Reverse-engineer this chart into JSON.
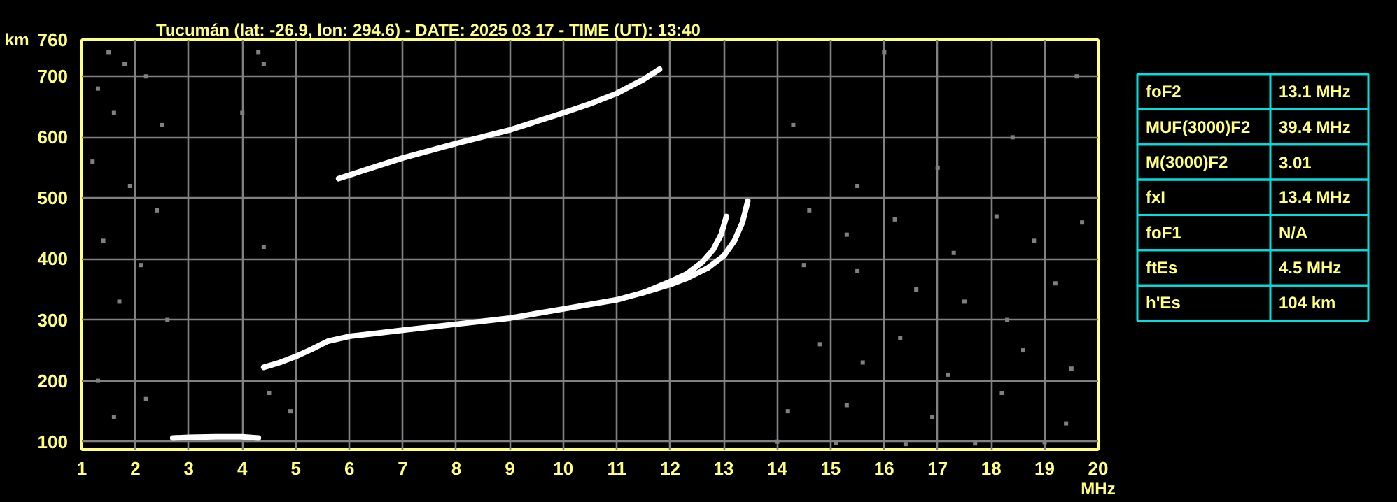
{
  "chart_data": [
    {
      "type": "line",
      "title": "Tucumán (lat: -26.9, lon: 294.6) - DATE: 2025 03 17 - TIME (UT): 13:40",
      "xlabel": "MHz",
      "ylabel": "km",
      "xlim": [
        1,
        20
      ],
      "ylim": [
        87,
        760
      ],
      "xticks": [
        1,
        2,
        3,
        4,
        5,
        6,
        7,
        8,
        9,
        10,
        11,
        12,
        13,
        14,
        15,
        16,
        17,
        18,
        19,
        20
      ],
      "yticks": [
        100,
        200,
        300,
        400,
        500,
        600,
        700,
        760
      ],
      "grid": true,
      "series": [
        {
          "color": "#ffffff",
          "x": [
            4.4,
            4.7,
            5.0,
            5.3,
            5.6,
            6.0,
            6.5,
            7.0,
            8.0,
            9.0,
            10.0,
            11.0,
            11.5,
            12.0,
            12.3,
            12.6,
            12.8,
            12.95,
            13.05
          ],
          "values": [
            222,
            230,
            240,
            252,
            265,
            273,
            278,
            283,
            293,
            303,
            318,
            333,
            345,
            363,
            375,
            395,
            415,
            440,
            470
          ]
        },
        {
          "color": "#ffffff",
          "x": [
            11.5,
            12.0,
            12.3,
            12.7,
            13.0,
            13.2,
            13.35,
            13.45
          ],
          "values": [
            345,
            358,
            368,
            385,
            405,
            430,
            460,
            495
          ]
        },
        {
          "color": "#ffffff",
          "x": [
            5.8,
            6.5,
            7.0,
            8.0,
            9.0,
            10.0,
            10.5,
            11.0,
            11.5,
            11.8
          ],
          "values": [
            532,
            552,
            566,
            590,
            612,
            640,
            655,
            672,
            695,
            712
          ]
        },
        {
          "color": "#ffffff",
          "x": [
            2.7,
            3.0,
            3.5,
            4.0,
            4.3
          ],
          "values": [
            106,
            107,
            108,
            108,
            106
          ]
        },
        {
          "type": "scatter",
          "marker": "square",
          "color": "#808080",
          "x": [
            14.6,
            15.3,
            16.2,
            17.3,
            18.1,
            18.8,
            19.7,
            14.5,
            15.5,
            16.6,
            17.5,
            18.3,
            19.2,
            14.8,
            15.6,
            16.3,
            17.2,
            18.6,
            19.5,
            14.2,
            15.3,
            16.9,
            18.2,
            19.4,
            14.0,
            15.1,
            16.4,
            17.7,
            19.0,
            15.5,
            17.0,
            18.4,
            19.6,
            14.3,
            16.0,
            1.5,
            1.8,
            2.2,
            1.3,
            1.6,
            2.5,
            1.2,
            1.9,
            2.4,
            1.4,
            2.1,
            1.7,
            2.6,
            1.3,
            2.2,
            1.6,
            4.3,
            4.4,
            4.0,
            4.4,
            4.5,
            4.9
          ],
          "values": [
            480,
            440,
            465,
            410,
            470,
            430,
            460,
            390,
            380,
            350,
            330,
            300,
            360,
            260,
            230,
            270,
            210,
            250,
            220,
            150,
            160,
            140,
            180,
            130,
            100,
            98,
            96,
            97,
            99,
            520,
            550,
            600,
            700,
            620,
            740,
            740,
            720,
            700,
            680,
            640,
            620,
            560,
            520,
            480,
            430,
            390,
            330,
            300,
            200,
            170,
            140,
            740,
            720,
            640,
            420,
            180,
            150
          ]
        }
      ]
    },
    {
      "type": "other",
      "categories": [
        "foF2",
        "MUF(3000)F2",
        "M(3000)F2",
        "fxI",
        "foF1",
        "ftEs",
        "h'Es"
      ],
      "value_labels": [
        "13.1 MHz",
        "39.4 MHz",
        "3.01",
        "13.4 MHz",
        "N/A",
        "4.5 MHz",
        "104 km"
      ]
    }
  ]
}
